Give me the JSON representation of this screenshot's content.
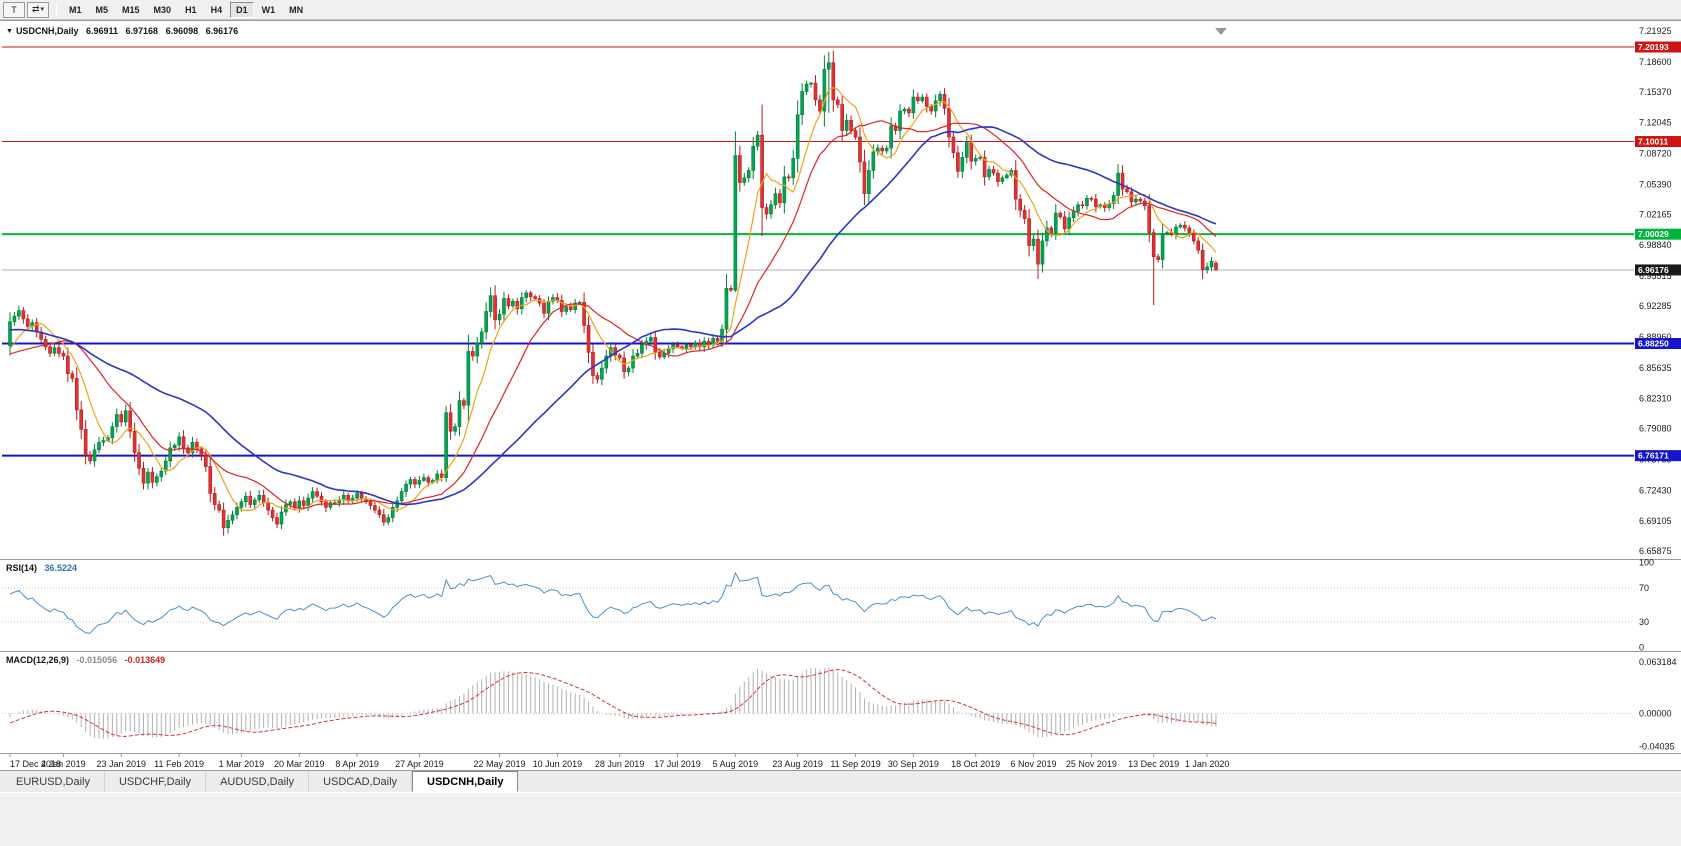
{
  "toolbar": {
    "template_icon": "T",
    "arrows_icon": "⇄",
    "caret_icon": "▾",
    "timeframes": [
      "M1",
      "M5",
      "M15",
      "M30",
      "H1",
      "H4",
      "D1",
      "W1",
      "MN"
    ],
    "active_timeframe": "D1"
  },
  "header": {
    "marker_icon": "▼",
    "symbol_period": "USDCNH,Daily",
    "open": "6.96911",
    "high": "6.97168",
    "low": "6.96098",
    "close": "6.96176"
  },
  "rsi_label": {
    "name": "RSI(14)",
    "value": "36.5224"
  },
  "macd_label": {
    "name": "MACD(12,26,9)",
    "value": "-0.015056",
    "signal": "-0.013649"
  },
  "tabs": [
    {
      "label": "EURUSD,Daily",
      "active": false
    },
    {
      "label": "USDCHF,Daily",
      "active": false
    },
    {
      "label": "AUDUSD,Daily",
      "active": false
    },
    {
      "label": "USDCAD,Daily",
      "active": false
    },
    {
      "label": "USDCNH,Daily",
      "active": true
    }
  ],
  "chart_data": {
    "type": "candlestick",
    "symbol": "USDCNH",
    "period": "Daily",
    "y_axis_ticks": [
      {
        "value": 7.21925,
        "label": "7.21925"
      },
      {
        "value": 7.186,
        "label": "7.18600"
      },
      {
        "value": 7.1537,
        "label": "7.15370"
      },
      {
        "value": 7.12045,
        "label": "7.12045"
      },
      {
        "value": 7.0872,
        "label": "7.08720"
      },
      {
        "value": 7.0539,
        "label": "7.05390"
      },
      {
        "value": 7.02165,
        "label": "7.02165"
      },
      {
        "value": 6.9884,
        "label": "6.98840"
      },
      {
        "value": 6.95515,
        "label": "6.95515"
      },
      {
        "value": 6.92285,
        "label": "6.92285"
      },
      {
        "value": 6.8896,
        "label": "6.88960"
      },
      {
        "value": 6.85635,
        "label": "6.85635"
      },
      {
        "value": 6.8231,
        "label": "6.82310"
      },
      {
        "value": 6.7908,
        "label": "6.79080"
      },
      {
        "value": 6.75755,
        "label": "6.75755"
      },
      {
        "value": 6.7243,
        "label": "6.72430"
      },
      {
        "value": 6.69105,
        "label": "6.69105"
      },
      {
        "value": 6.65875,
        "label": "6.65875"
      }
    ],
    "levels": [
      {
        "price": 7.20193,
        "label": "7.20193",
        "color": "#cc1414",
        "width": 1
      },
      {
        "price": 7.10011,
        "label": "7.10011",
        "color": "#cc1414",
        "width": 1
      },
      {
        "price": 7.00029,
        "label": "7.00029",
        "color": "#00b53c",
        "width": 2
      },
      {
        "price": 6.8825,
        "label": "6.88250",
        "color": "#1414cc",
        "width": 2
      },
      {
        "price": 6.76171,
        "label": "6.76171",
        "color": "#1414cc",
        "width": 2
      }
    ],
    "current_price": {
      "value": 6.96176,
      "label": "6.96176",
      "line_color": "#b4b4b4",
      "badge_color": "#1a1a1a"
    },
    "x_labels": [
      {
        "text": "17 Dec 2018",
        "index": 0
      },
      {
        "text": "4 Jan 2019",
        "index": 12
      },
      {
        "text": "23 Jan 2019",
        "index": 25
      },
      {
        "text": "11 Feb 2019",
        "index": 38
      },
      {
        "text": "1 Mar 2019",
        "index": 52
      },
      {
        "text": "20 Mar 2019",
        "index": 65
      },
      {
        "text": "8 Apr 2019",
        "index": 78
      },
      {
        "text": "27 Apr 2019",
        "index": 92
      },
      {
        "text": "22 May 2019",
        "index": 110
      },
      {
        "text": "10 Jun 2019",
        "index": 123
      },
      {
        "text": "28 Jun 2019",
        "index": 137
      },
      {
        "text": "17 Jul 2019",
        "index": 150
      },
      {
        "text": "5 Aug 2019",
        "index": 163
      },
      {
        "text": "23 Aug 2019",
        "index": 177
      },
      {
        "text": "11 Sep 2019",
        "index": 190
      },
      {
        "text": "30 Sep 2019",
        "index": 203
      },
      {
        "text": "18 Oct 2019",
        "index": 217
      },
      {
        "text": "6 Nov 2019",
        "index": 230
      },
      {
        "text": "25 Nov 2019",
        "index": 243
      },
      {
        "text": "13 Dec 2019",
        "index": 257
      },
      {
        "text": "1 Jan 2020",
        "index": 269
      }
    ],
    "pre_closes": [
      6.912,
      6.906,
      6.915,
      6.921,
      6.928,
      6.924,
      6.931,
      6.937,
      6.933,
      6.94,
      6.935,
      6.929,
      6.934,
      6.926,
      6.92,
      6.925,
      6.917,
      6.911,
      6.916,
      6.908,
      6.903,
      6.908,
      6.9,
      6.894,
      6.899,
      6.891,
      6.885,
      6.89,
      6.882,
      6.876,
      6.881,
      6.873,
      6.867,
      6.862,
      6.856,
      6.85,
      6.844,
      6.85,
      6.857,
      6.864,
      6.87,
      6.876,
      6.882,
      6.876,
      6.88
    ],
    "closes": [
      6.906,
      6.912,
      6.918,
      6.909,
      6.901,
      6.905,
      6.895,
      6.887,
      6.879,
      6.872,
      6.878,
      6.872,
      6.869,
      6.85,
      6.845,
      6.811,
      6.79,
      6.762,
      6.756,
      6.768,
      6.776,
      6.778,
      6.781,
      6.793,
      6.806,
      6.798,
      6.81,
      6.788,
      6.765,
      6.748,
      6.732,
      6.744,
      6.733,
      6.739,
      6.745,
      6.756,
      6.77,
      6.773,
      6.782,
      6.77,
      6.765,
      6.776,
      6.769,
      6.762,
      6.75,
      6.721,
      6.709,
      6.703,
      6.684,
      6.692,
      6.698,
      6.706,
      6.712,
      6.718,
      6.709,
      6.714,
      6.719,
      6.711,
      6.703,
      6.695,
      6.688,
      6.701,
      6.709,
      6.712,
      6.706,
      6.713,
      6.708,
      6.716,
      6.723,
      6.718,
      6.712,
      6.706,
      6.711,
      6.711,
      6.714,
      6.719,
      6.713,
      6.716,
      6.721,
      6.715,
      6.712,
      6.708,
      6.703,
      6.698,
      6.69,
      6.695,
      6.706,
      6.713,
      6.723,
      6.731,
      6.736,
      6.731,
      6.735,
      6.738,
      6.733,
      6.735,
      6.742,
      6.738,
      6.808,
      6.788,
      6.793,
      6.821,
      6.816,
      6.874,
      6.869,
      6.883,
      6.895,
      6.917,
      6.934,
      6.908,
      6.914,
      6.931,
      6.923,
      6.928,
      6.92,
      6.932,
      6.937,
      6.933,
      6.931,
      6.926,
      6.915,
      6.928,
      6.932,
      6.929,
      6.917,
      6.922,
      6.919,
      6.926,
      6.927,
      6.902,
      6.873,
      6.848,
      6.844,
      6.856,
      6.869,
      6.878,
      6.87,
      6.867,
      6.852,
      6.856,
      6.869,
      6.872,
      6.881,
      6.885,
      6.889,
      6.873,
      6.868,
      6.872,
      6.877,
      6.881,
      6.879,
      6.877,
      6.881,
      6.879,
      6.883,
      6.879,
      6.885,
      6.881,
      6.888,
      6.885,
      6.898,
      6.942,
      6.94,
      7.085,
      7.056,
      7.061,
      7.069,
      7.095,
      7.107,
      7.029,
      7.022,
      7.032,
      7.044,
      7.034,
      7.062,
      7.061,
      7.082,
      7.129,
      7.154,
      7.162,
      7.163,
      7.145,
      7.133,
      7.178,
      7.185,
      7.145,
      7.14,
      7.112,
      7.123,
      7.112,
      7.105,
      7.078,
      7.044,
      7.069,
      7.089,
      7.093,
      7.09,
      7.093,
      7.117,
      7.112,
      7.133,
      7.135,
      7.131,
      7.148,
      7.144,
      7.148,
      7.138,
      7.133,
      7.144,
      7.151,
      7.136,
      7.105,
      7.088,
      7.068,
      7.083,
      7.099,
      7.079,
      7.082,
      7.083,
      7.062,
      7.07,
      7.066,
      7.057,
      7.061,
      7.064,
      7.069,
      7.038,
      7.026,
      7.017,
      6.988,
      6.995,
      6.968,
      6.993,
      7.007,
      7.002,
      7.023,
      7.019,
      7.006,
      7.018,
      7.025,
      7.032,
      7.031,
      7.039,
      7.038,
      7.03,
      7.032,
      7.029,
      7.033,
      7.042,
      7.066,
      7.049,
      7.046,
      7.035,
      7.038,
      7.036,
      7.031,
      7.002,
      6.976,
      6.973,
      7.001,
      7.002,
      7.0,
      7.008,
      7.01,
      7.007,
      7.002,
      6.993,
      6.983,
      6.962,
      6.965,
      6.971,
      6.96176
    ],
    "wick_overrides": {
      "98": {
        "h": 6.815,
        "l": 6.733
      },
      "163": {
        "h": 7.111,
        "l": 6.938
      },
      "169": {
        "h": 7.14,
        "l": 6.998
      },
      "184": {
        "h": 7.1965,
        "l": 7.131
      },
      "231": {
        "l": 6.952
      },
      "257": {
        "h": 7.006,
        "l": 6.924
      },
      "271": {
        "o": 6.96911,
        "h": 6.97168,
        "l": 6.96098
      }
    },
    "candle_colors": {
      "up": "#00a550",
      "up_border": "#067c3c",
      "down": "#e03232",
      "down_border": "#b21c1c"
    },
    "moving_averages": [
      {
        "period": 8,
        "color": "#efa21a",
        "width": 1.2
      },
      {
        "period": 20,
        "color": "#e42222",
        "width": 1.2
      },
      {
        "period": 45,
        "color": "#2b35c8",
        "width": 1.6
      }
    ],
    "rsi": {
      "period": 14,
      "color": "#4a90d2",
      "levels": [
        {
          "value": 100,
          "label": "100"
        },
        {
          "value": 70,
          "label": "70"
        },
        {
          "value": 30,
          "label": "30"
        },
        {
          "value": 0,
          "label": "0"
        }
      ],
      "dotted_levels": [
        70,
        30
      ]
    },
    "macd": {
      "fast": 12,
      "slow": 26,
      "signal": 9,
      "hist_color": "#b0b0b0",
      "signal_color": "#d83434",
      "range": [
        -0.046,
        0.074
      ],
      "ticks": [
        {
          "value": 0.063184,
          "label": "0.063184"
        },
        {
          "value": 0,
          "label": "0.00000"
        },
        {
          "value": -0.04035,
          "label": "-0.04035"
        }
      ]
    }
  }
}
